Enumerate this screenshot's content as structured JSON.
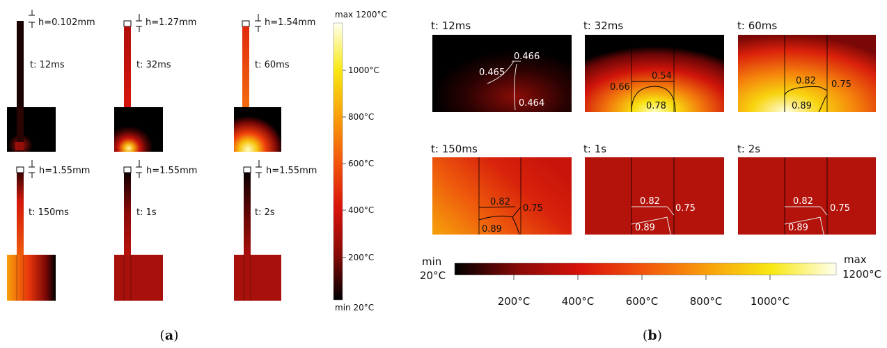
{
  "panel_a": {
    "caption_letter": "a",
    "columns": [
      {
        "time": "t: 12ms",
        "h": "h=0.102mm"
      },
      {
        "time": "t: 32ms",
        "h": "h=1.27mm"
      },
      {
        "time": "t: 60ms",
        "h": "h=1.54mm"
      },
      {
        "time": "t: 150ms",
        "h": "h=1.55mm"
      },
      {
        "time": "t: 1s",
        "h": "h=1.55mm"
      },
      {
        "time": "t: 2s",
        "h": "h=1.55mm"
      }
    ],
    "colorbar": {
      "max_label": "max 1200°C",
      "min_label": "min 20°C",
      "ticks": [
        "1000°C",
        "800°C",
        "600°C",
        "400°C",
        "200°C"
      ]
    }
  },
  "panel_b": {
    "caption_letter": "b",
    "frames": [
      {
        "time": "t: 12ms",
        "values": [
          "0.466",
          "0.465",
          "0.464"
        ]
      },
      {
        "time": "t: 32ms",
        "values": [
          "0.54",
          "0.66",
          "0.78"
        ]
      },
      {
        "time": "t: 60ms",
        "values": [
          "0.82",
          "0.75",
          "0.89"
        ]
      },
      {
        "time": "t: 150ms",
        "values": [
          "0.82",
          "0.75",
          "0.89"
        ]
      },
      {
        "time": "t: 1s",
        "values": [
          "0.82",
          "0.75",
          "0.89"
        ]
      },
      {
        "time": "t: 2s",
        "values": [
          "0.82",
          "0.75",
          "0.89"
        ]
      }
    ],
    "colorbar": {
      "min_label": "min",
      "min_value": "20°C",
      "max_label": "max",
      "max_value": "1200°C",
      "ticks": [
        "200°C",
        "400°C",
        "600°C",
        "800°C",
        "1000°C"
      ]
    }
  },
  "colors": {
    "cold": "#000000",
    "warm": "#b0130d",
    "hot": "#e8400c",
    "hotter": "#f7a20a",
    "max": "#ffffe0"
  }
}
